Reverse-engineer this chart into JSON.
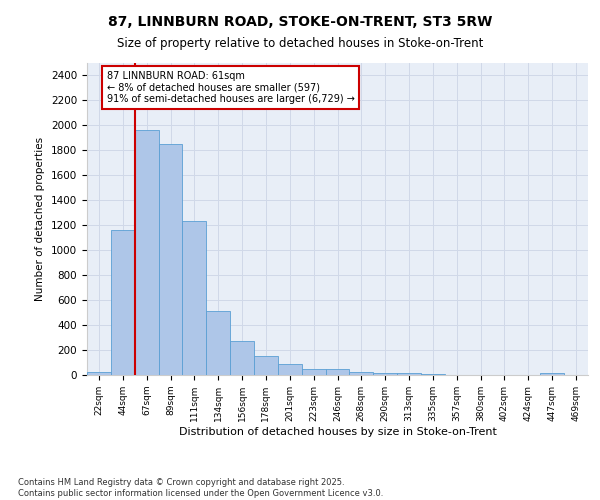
{
  "title1": "87, LINNBURN ROAD, STOKE-ON-TRENT, ST3 5RW",
  "title2": "Size of property relative to detached houses in Stoke-on-Trent",
  "xlabel": "Distribution of detached houses by size in Stoke-on-Trent",
  "ylabel": "Number of detached properties",
  "categories": [
    "22sqm",
    "44sqm",
    "67sqm",
    "89sqm",
    "111sqm",
    "134sqm",
    "156sqm",
    "178sqm",
    "201sqm",
    "223sqm",
    "246sqm",
    "268sqm",
    "290sqm",
    "313sqm",
    "335sqm",
    "357sqm",
    "380sqm",
    "402sqm",
    "424sqm",
    "447sqm",
    "469sqm"
  ],
  "values": [
    25,
    1160,
    1960,
    1850,
    1230,
    515,
    270,
    155,
    90,
    50,
    45,
    25,
    20,
    15,
    5,
    0,
    0,
    0,
    0,
    15,
    0
  ],
  "bar_color": "#aec6e8",
  "bar_edge_color": "#5a9fd4",
  "vline_color": "#cc0000",
  "annotation_text": "87 LINNBURN ROAD: 61sqm\n← 8% of detached houses are smaller (597)\n91% of semi-detached houses are larger (6,729) →",
  "annotation_box_color": "#ffffff",
  "annotation_box_edge": "#cc0000",
  "ylim": [
    0,
    2500
  ],
  "yticks": [
    0,
    200,
    400,
    600,
    800,
    1000,
    1200,
    1400,
    1600,
    1800,
    2000,
    2200,
    2400
  ],
  "grid_color": "#d0d8e8",
  "bg_color": "#e8eef7",
  "footer1": "Contains HM Land Registry data © Crown copyright and database right 2025.",
  "footer2": "Contains public sector information licensed under the Open Government Licence v3.0."
}
